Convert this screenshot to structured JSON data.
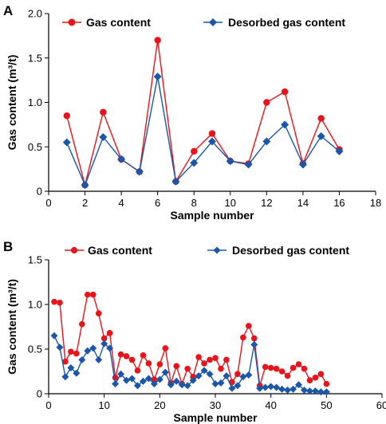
{
  "chart_data": [
    {
      "panel": "A",
      "type": "line",
      "xlabel": "Sample number",
      "ylabel": "Gas content (m³/t)",
      "xlim": [
        0,
        18
      ],
      "ylim": [
        0,
        2.0
      ],
      "x_ticks": [
        "0",
        "2",
        "4",
        "6",
        "8",
        "10",
        "12",
        "14",
        "16",
        "18"
      ],
      "y_ticks": [
        "0",
        "0.5",
        "1.0",
        "1.5",
        "2.0"
      ],
      "grid": false,
      "legend_position": "top",
      "x": [
        1,
        2,
        3,
        4,
        5,
        6,
        7,
        8,
        9,
        10,
        11,
        12,
        13,
        14,
        15,
        16
      ],
      "series": [
        {
          "name": "Gas content",
          "color": "#e8141b",
          "marker": "circle",
          "values": [
            0.85,
            0.07,
            0.89,
            0.36,
            0.22,
            1.7,
            0.11,
            0.45,
            0.65,
            0.34,
            0.31,
            1.0,
            1.12,
            0.31,
            0.82,
            0.47
          ]
        },
        {
          "name": "Desorbed gas content",
          "color": "#1a57a8",
          "marker": "diamond",
          "values": [
            0.55,
            0.07,
            0.61,
            0.36,
            0.22,
            1.29,
            0.11,
            0.32,
            0.56,
            0.34,
            0.3,
            0.56,
            0.75,
            0.3,
            0.62,
            0.45
          ]
        }
      ]
    },
    {
      "panel": "B",
      "type": "line",
      "xlabel": "Sample number",
      "ylabel": "Gas content (m³/t)",
      "xlim": [
        0,
        60
      ],
      "ylim": [
        0,
        1.5
      ],
      "x_ticks": [
        "0",
        "10",
        "20",
        "30",
        "40",
        "50",
        "60"
      ],
      "y_ticks": [
        "0",
        "0.5",
        "1.0",
        "1.5"
      ],
      "grid": false,
      "legend_position": "top",
      "x": [
        1,
        2,
        3,
        4,
        5,
        6,
        7,
        8,
        9,
        10,
        11,
        12,
        13,
        14,
        15,
        16,
        17,
        18,
        19,
        20,
        21,
        22,
        23,
        24,
        25,
        26,
        27,
        28,
        29,
        30,
        31,
        32,
        33,
        34,
        35,
        36,
        37,
        38,
        39,
        40,
        41,
        42,
        43,
        44,
        45,
        46,
        47,
        48,
        49,
        50
      ],
      "series": [
        {
          "name": "Gas content",
          "color": "#e8141b",
          "marker": "circle",
          "values": [
            1.03,
            1.02,
            0.36,
            0.47,
            0.45,
            0.78,
            1.11,
            1.11,
            0.9,
            0.62,
            0.68,
            0.18,
            0.44,
            0.42,
            0.38,
            0.26,
            0.43,
            0.34,
            0.16,
            0.33,
            0.51,
            0.12,
            0.31,
            0.11,
            0.28,
            0.19,
            0.41,
            0.34,
            0.38,
            0.4,
            0.28,
            0.38,
            0.13,
            0.22,
            0.63,
            0.76,
            0.62,
            0.09,
            0.3,
            0.29,
            0.28,
            0.25,
            0.2,
            0.29,
            0.33,
            0.28,
            0.15,
            0.18,
            0.22,
            0.11
          ]
        },
        {
          "name": "Desorbed gas content",
          "color": "#1a57a8",
          "marker": "diamond",
          "values": [
            0.65,
            0.52,
            0.19,
            0.29,
            0.23,
            0.38,
            0.48,
            0.51,
            0.38,
            0.56,
            0.51,
            0.11,
            0.22,
            0.15,
            0.17,
            0.09,
            0.14,
            0.17,
            0.11,
            0.16,
            0.24,
            0.1,
            0.14,
            0.1,
            0.09,
            0.15,
            0.2,
            0.26,
            0.22,
            0.11,
            0.12,
            0.2,
            0.06,
            0.09,
            0.19,
            0.21,
            0.55,
            0.06,
            0.07,
            0.08,
            0.07,
            0.05,
            0.04,
            0.05,
            0.1,
            0.04,
            0.03,
            0.03,
            0.02,
            0.02
          ]
        }
      ]
    }
  ]
}
